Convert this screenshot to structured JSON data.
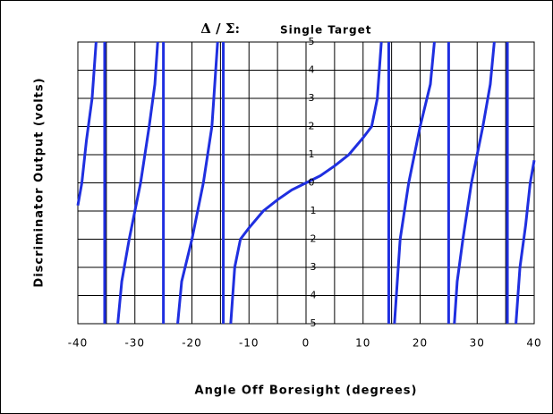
{
  "chart_data": {
    "type": "line",
    "title": "Δ / Σ:",
    "subtitle": "Single Target",
    "xlabel": "Angle Off Boresight (degrees)",
    "ylabel": "Discriminator Output (volts)",
    "xlim": [
      -40,
      40
    ],
    "ylim": [
      -5,
      5
    ],
    "xticks": [
      -40,
      -30,
      -20,
      -10,
      0,
      10,
      20,
      30,
      40
    ],
    "x_minor_ticks": [
      -35,
      -25,
      -15,
      -5,
      5,
      15,
      25,
      35
    ],
    "yticks": [
      -5,
      -4,
      -3,
      -2,
      -1,
      0,
      1,
      2,
      3,
      4,
      5
    ],
    "grid": true,
    "series": [
      {
        "name": null,
        "color": "#1f2fe0",
        "x": [
          -40,
          -39.3,
          -38.5,
          -37.5,
          -36.8,
          null,
          -35.3,
          -35.3,
          null,
          -33,
          -32.3,
          -31,
          -29,
          -27.5,
          -26.5,
          -26,
          null,
          -25,
          -25,
          null,
          -22.5,
          -21.8,
          -20,
          -18,
          -16.5,
          -16,
          -15.5,
          null,
          -14.5,
          -14.5,
          null,
          -13.2,
          -12.5,
          -11.5,
          -10,
          -7.5,
          -5,
          -2.5,
          0,
          2.5,
          5,
          7.5,
          10,
          11.5,
          12.5,
          13.2,
          null,
          14.5,
          14.5,
          null,
          15.5,
          16,
          16.5,
          18,
          20,
          21.8,
          22.5,
          null,
          25,
          25,
          null,
          26,
          26.5,
          27.5,
          29,
          31,
          32.3,
          33,
          null,
          35.3,
          35.3,
          null,
          36.8,
          37.5,
          38.5,
          39.3,
          40
        ],
        "values": [
          -0.8,
          0,
          1.5,
          3,
          5,
          null,
          5,
          -5,
          null,
          -5,
          -3.5,
          -2,
          0,
          2,
          3.5,
          5,
          null,
          5,
          -5,
          null,
          -5,
          -3.5,
          -2,
          0,
          2,
          3.5,
          5,
          null,
          5,
          -5,
          null,
          -5,
          -3,
          -2,
          -1.6,
          -1,
          -0.6,
          -0.25,
          0,
          0.25,
          0.6,
          1,
          1.6,
          2,
          3,
          5,
          null,
          5,
          -5,
          null,
          -5,
          -3.5,
          -2,
          0,
          2,
          3.5,
          5,
          null,
          5,
          -5,
          null,
          -5,
          -3.5,
          -2,
          0,
          2,
          3.5,
          5,
          null,
          5,
          -5,
          null,
          -5,
          -3,
          -1.5,
          0,
          0.8
        ]
      }
    ]
  }
}
